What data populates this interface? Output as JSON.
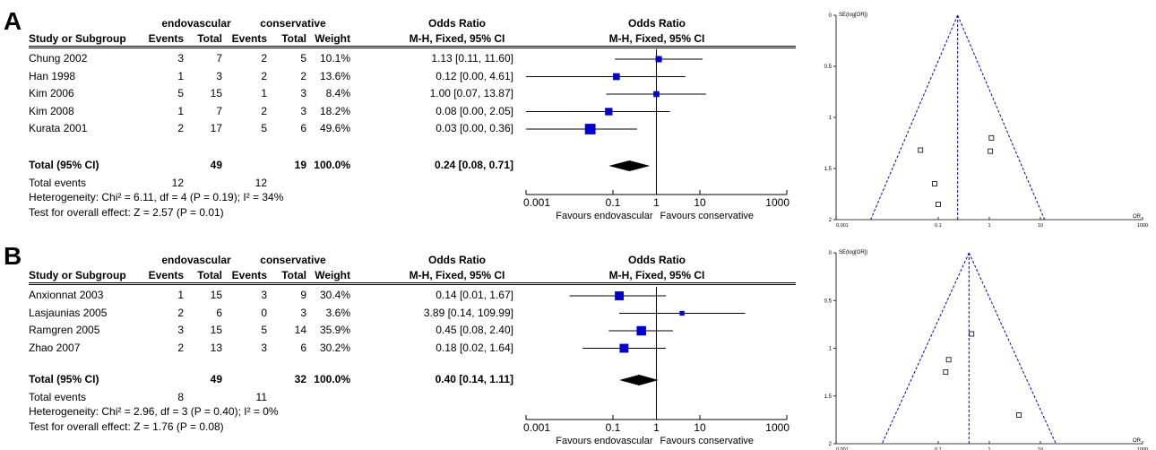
{
  "headers": {
    "group1": "endovascular",
    "group2": "conservative",
    "col_study": "Study or Subgroup",
    "col_events": "Events",
    "col_total": "Total",
    "col_weight": "Weight",
    "col_or_title": "Odds Ratio",
    "col_or_method": "M-H, Fixed, 95% CI",
    "plot_title": "Odds Ratio",
    "plot_method": "M-H, Fixed, 95% CI"
  },
  "forest_axis": {
    "ticks": [
      "0.001",
      "0.1",
      "1",
      "10",
      "1000"
    ],
    "tick_values": [
      0.001,
      0.1,
      1,
      10,
      1000
    ],
    "favours_left": "Favours endovascular",
    "favours_right": "Favours conservative",
    "scale": "log"
  },
  "funnel_axis": {
    "y_label": "SE(log[OR])",
    "x_label": "OR",
    "y_ticks": [
      "0",
      "0.5",
      "1",
      "1.5",
      "2"
    ],
    "x_ticks": [
      "0.001",
      "0.1",
      "1",
      "10",
      "1000"
    ],
    "x_tick_values": [
      0.001,
      0.1,
      1,
      10,
      1000
    ]
  },
  "panels": [
    {
      "letter": "A",
      "studies": [
        {
          "name": "Chung 2002",
          "e1": "3",
          "t1": "7",
          "e2": "2",
          "t2": "5",
          "weight": "10.1%",
          "ci_text": "1.13 [0.11, 11.60]"
        },
        {
          "name": "Han 1998",
          "e1": "1",
          "t1": "3",
          "e2": "2",
          "t2": "2",
          "weight": "13.6%",
          "ci_text": "0.12 [0.00, 4.61]"
        },
        {
          "name": "Kim 2006",
          "e1": "5",
          "t1": "15",
          "e2": "1",
          "t2": "3",
          "weight": "8.4%",
          "ci_text": "1.00 [0.07, 13.87]"
        },
        {
          "name": "Kim 2008",
          "e1": "1",
          "t1": "7",
          "e2": "2",
          "t2": "3",
          "weight": "18.2%",
          "ci_text": "0.08 [0.00, 2.05]"
        },
        {
          "name": "Kurata 2001",
          "e1": "2",
          "t1": "17",
          "e2": "5",
          "t2": "6",
          "weight": "49.6%",
          "ci_text": "0.03 [0.00, 0.36]"
        }
      ],
      "total": {
        "label": "Total (95% CI)",
        "t1": "49",
        "t2": "19",
        "weight": "100.0%",
        "ci_text": "0.24 [0.08, 0.71]"
      },
      "events": {
        "label": "Total events",
        "e1": "12",
        "e2": "12"
      },
      "heterogeneity": "Heterogeneity: Chi² = 6.11, df = 4 (P = 0.19); I² = 34%",
      "overall": "Test for overall effect: Z = 2.57 (P = 0.01)"
    },
    {
      "letter": "B",
      "studies": [
        {
          "name": "Anxionnat 2003",
          "e1": "1",
          "t1": "15",
          "e2": "3",
          "t2": "9",
          "weight": "30.4%",
          "ci_text": "0.14 [0.01, 1.67]"
        },
        {
          "name": "Lasjaunias 2005",
          "e1": "2",
          "t1": "6",
          "e2": "0",
          "t2": "3",
          "weight": "3.6%",
          "ci_text": "3.89 [0.14, 109.99]"
        },
        {
          "name": "Ramgren 2005",
          "e1": "3",
          "t1": "15",
          "e2": "5",
          "t2": "14",
          "weight": "35.9%",
          "ci_text": "0.45 [0.08, 2.40]"
        },
        {
          "name": "Zhao 2007",
          "e1": "2",
          "t1": "13",
          "e2": "3",
          "t2": "6",
          "weight": "30.2%",
          "ci_text": "0.18 [0.02, 1.64]"
        }
      ],
      "total": {
        "label": "Total (95% CI)",
        "t1": "49",
        "t2": "32",
        "weight": "100.0%",
        "ci_text": "0.40 [0.14, 1.11]"
      },
      "events": {
        "label": "Total events",
        "e1": "8",
        "e2": "11"
      },
      "heterogeneity": "Heterogeneity: Chi² = 2.96, df = 3 (P = 0.40); I² = 0%",
      "overall": "Test for overall effect: Z = 1.76 (P = 0.08)"
    }
  ],
  "chart_data": [
    {
      "type": "scatter",
      "panel": "A",
      "title": "",
      "xlabel": "",
      "series": [
        {
          "or": [
            1.13,
            0.12,
            1.0,
            0.08,
            0.03
          ],
          "lo": [
            0.11,
            0.0,
            0.07,
            0.0,
            0.0
          ],
          "hi": [
            11.6,
            4.61,
            13.87,
            2.05,
            0.36
          ],
          "weight": [
            10.1,
            13.6,
            8.4,
            18.2,
            49.6
          ]
        }
      ],
      "pooled": {
        "or": 0.24,
        "lo": 0.08,
        "hi": 0.71
      },
      "xlim": [
        0.001,
        1000
      ],
      "x_scale": "log",
      "reference_line": 1
    },
    {
      "type": "scatter",
      "panel": "A",
      "title": "",
      "xlabel": "OR",
      "ylabel": "SE(log[OR])",
      "points": [
        {
          "or": 0.045,
          "se": 1.32
        },
        {
          "or": 1.1,
          "se": 1.2
        },
        {
          "or": 1.05,
          "se": 1.33
        },
        {
          "or": 0.085,
          "se": 1.65
        },
        {
          "or": 0.1,
          "se": 1.85
        }
      ],
      "pooled_or": 0.24,
      "xlim": [
        0.001,
        1000
      ],
      "ylim": [
        0,
        2
      ],
      "x_scale": "log",
      "y_reversed": true
    },
    {
      "type": "scatter",
      "panel": "B",
      "title": "",
      "xlabel": "",
      "series": [
        {
          "or": [
            0.14,
            3.89,
            0.45,
            0.18
          ],
          "lo": [
            0.01,
            0.14,
            0.08,
            0.02
          ],
          "hi": [
            1.67,
            109.99,
            2.4,
            1.64
          ],
          "weight": [
            30.4,
            3.6,
            35.9,
            30.2
          ]
        }
      ],
      "pooled": {
        "or": 0.4,
        "lo": 0.14,
        "hi": 1.11
      },
      "xlim": [
        0.001,
        1000
      ],
      "x_scale": "log",
      "reference_line": 1
    },
    {
      "type": "scatter",
      "panel": "B",
      "title": "",
      "xlabel": "OR",
      "ylabel": "SE(log[OR])",
      "points": [
        {
          "or": 0.45,
          "se": 0.85
        },
        {
          "or": 0.16,
          "se": 1.12
        },
        {
          "or": 0.14,
          "se": 1.25
        },
        {
          "or": 3.8,
          "se": 1.7
        }
      ],
      "pooled_or": 0.4,
      "xlim": [
        0.001,
        1000
      ],
      "ylim": [
        0,
        2
      ],
      "x_scale": "log",
      "y_reversed": true
    }
  ]
}
